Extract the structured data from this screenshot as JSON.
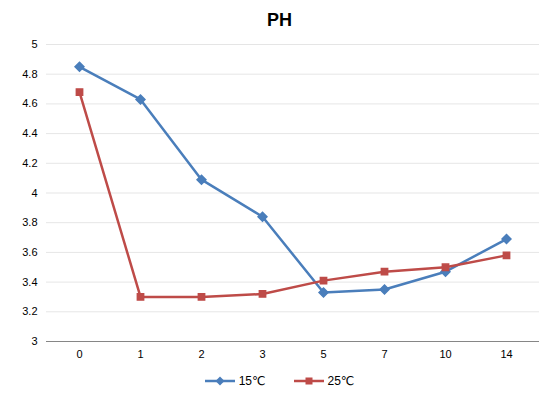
{
  "chart_data": {
    "type": "line",
    "title": "PH",
    "categories": [
      "0",
      "1",
      "2",
      "3",
      "5",
      "7",
      "10",
      "14"
    ],
    "series": [
      {
        "name": "15℃",
        "color": "#4a7ebb",
        "marker": "diamond",
        "values": [
          4.85,
          4.63,
          4.09,
          3.84,
          3.33,
          3.35,
          3.47,
          3.69
        ]
      },
      {
        "name": "25℃",
        "color": "#be4b48",
        "marker": "square",
        "values": [
          4.68,
          3.3,
          3.3,
          3.32,
          3.41,
          3.47,
          3.5,
          3.58
        ]
      }
    ],
    "ylim": [
      3,
      5
    ],
    "yticks": [
      3,
      3.2,
      3.4,
      3.6,
      3.8,
      4,
      4.2,
      4.4,
      4.6,
      4.8,
      5
    ],
    "grid": true,
    "legend": "bottom"
  }
}
